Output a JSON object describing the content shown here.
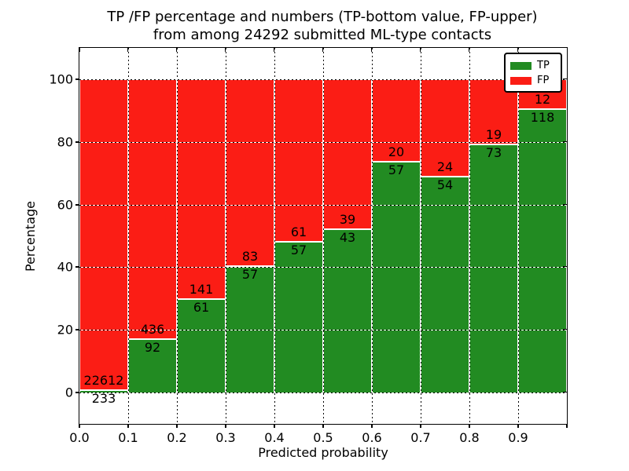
{
  "header": {
    "title_line1": "TP /FP percentage and numbers (TP-bottom value, FP-upper)",
    "title_line2": "from among 24292 submitted ML-type contacts"
  },
  "axes": {
    "xlabel": "Predicted probability",
    "ylabel": "Percentage"
  },
  "legend": {
    "items": [
      {
        "label": "TP",
        "color": "#228b22"
      },
      {
        "label": "FP",
        "color": "#fb1d15"
      }
    ]
  },
  "colors": {
    "tp_green": "#228b22",
    "fp_red": "#fb1d15",
    "grid": "#000000",
    "background": "#ffffff"
  },
  "chart_data": {
    "type": "bar",
    "stacked": true,
    "title": "TP /FP percentage and numbers (TP-bottom value, FP-upper) from among 24292 submitted ML-type contacts",
    "xlabel": "Predicted probability",
    "ylabel": "Percentage",
    "bin_edges": [
      0.0,
      0.1,
      0.2,
      0.3,
      0.4,
      0.5,
      0.6,
      0.7,
      0.8,
      0.9,
      1.0
    ],
    "categories": [
      "0.0-0.1",
      "0.1-0.2",
      "0.2-0.3",
      "0.3-0.4",
      "0.4-0.5",
      "0.5-0.6",
      "0.6-0.7",
      "0.7-0.8",
      "0.8-0.9",
      "0.9-1.0"
    ],
    "series": [
      {
        "name": "TP",
        "color": "#228b22",
        "counts": [
          233,
          92,
          61,
          57,
          57,
          43,
          57,
          54,
          73,
          118
        ]
      },
      {
        "name": "FP",
        "color": "#fb1d15",
        "counts": [
          22612,
          436,
          141,
          83,
          61,
          39,
          20,
          24,
          19,
          12
        ]
      }
    ],
    "tp_percent": [
      1.02,
      17.42,
      30.2,
      40.71,
      48.31,
      52.44,
      74.03,
      69.23,
      79.35,
      90.77
    ],
    "total_contacts": 24292,
    "x_tick_labels": [
      "0.0",
      "0.1",
      "0.2",
      "0.3",
      "0.4",
      "0.5",
      "0.6",
      "0.7",
      "0.8",
      "0.9"
    ],
    "y_tick_labels": [
      "0",
      "20",
      "40",
      "60",
      "80",
      "100"
    ],
    "y_tick_values": [
      0,
      20,
      40,
      60,
      80,
      100
    ],
    "xlim": [
      0.0,
      1.0
    ],
    "ylim": [
      -10,
      110
    ],
    "grid": "dotted, drawn over bars",
    "legend_position": "upper right"
  }
}
